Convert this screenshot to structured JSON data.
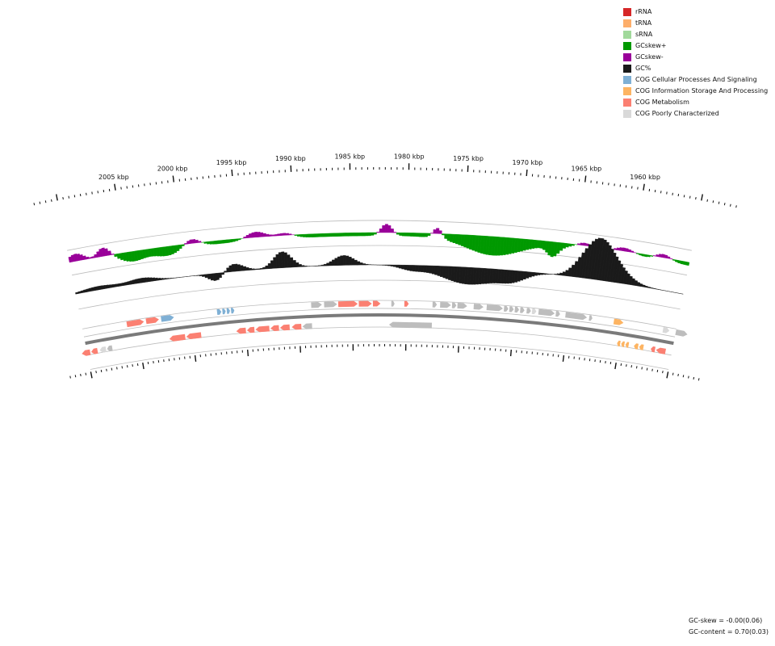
{
  "legend": [
    {
      "label": "rRNA",
      "color": "#d62728"
    },
    {
      "label": "tRNA",
      "color": "#fdae6b"
    },
    {
      "label": "sRNA",
      "color": "#a1d99b"
    },
    {
      "label": "GCskew+",
      "color": "#009900"
    },
    {
      "label": "GCskew-",
      "color": "#990099"
    },
    {
      "label": "GC%",
      "color": "#1a1a1a"
    },
    {
      "label": "COG Cellular Processes And Signaling",
      "color": "#7fb0d5"
    },
    {
      "label": "COG Information Storage And Processing",
      "color": "#fdb462"
    },
    {
      "label": "COG Metabolism",
      "color": "#fb8072"
    },
    {
      "label": "COG Poorly Characterized",
      "color": "#d9d9d9"
    }
  ],
  "ruler": {
    "labels": [
      "2005 kbp",
      "2000 kbp",
      "1995 kbp",
      "1990 kbp",
      "1985 kbp",
      "1980 kbp",
      "1975 kbp",
      "1970 kbp",
      "1965 kbp",
      "1960 kbp"
    ],
    "kb_values": [
      2005,
      2000,
      1995,
      1990,
      1985,
      1980,
      1975,
      1970,
      1965,
      1960
    ]
  },
  "stats": {
    "gc_skew_label": "GC-skew",
    "gc_skew_value": "-0.00(0.06)",
    "gc_content_label": "GC-content",
    "gc_content_value": "0.70(0.03)"
  },
  "colors": {
    "skew_pos": "#009900",
    "skew_neg": "#990099",
    "gc": "#1a1a1a",
    "track_line": "#bbbbbb",
    "backbone": "#7a7a7a",
    "cog_metabolism": "#fb8072",
    "cog_cellular": "#7fb0d5",
    "cog_info": "#fdb462",
    "cog_poor": "#d9d9d9",
    "other_gene": "#bdbdbd"
  }
}
